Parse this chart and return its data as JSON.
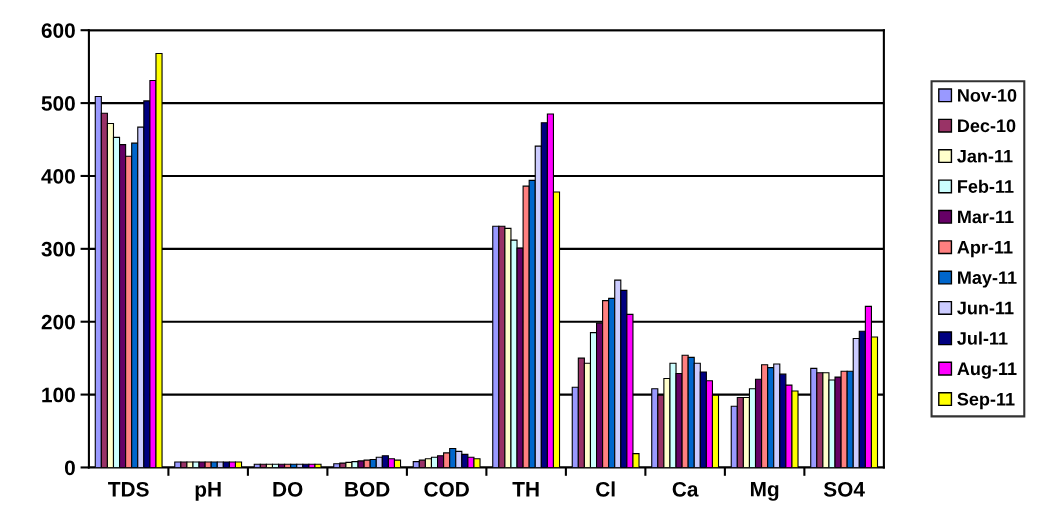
{
  "chart_data": {
    "type": "bar",
    "categories": [
      "TDS",
      "pH",
      "DO",
      "BOD",
      "COD",
      "TH",
      "Cl",
      "Ca",
      "Mg",
      "SO4"
    ],
    "ylim": [
      0,
      600
    ],
    "yticks": [
      0,
      100,
      200,
      300,
      400,
      500,
      600
    ],
    "grid": "y",
    "legend": "right",
    "series": [
      {
        "name": "Nov-10",
        "color": "#9999ff",
        "values": [
          509,
          7.5,
          4.5,
          5,
          8,
          331,
          110,
          108,
          84,
          136
        ]
      },
      {
        "name": "Dec-10",
        "color": "#993366",
        "values": [
          486,
          7.5,
          4.5,
          6,
          10,
          331,
          150,
          99,
          96,
          130
        ]
      },
      {
        "name": "Jan-11",
        "color": "#ffffcc",
        "values": [
          472,
          7.5,
          4.5,
          7,
          12,
          328,
          143,
          122,
          96,
          130
        ]
      },
      {
        "name": "Feb-11",
        "color": "#ccffff",
        "values": [
          453,
          7.5,
          4.5,
          8,
          14,
          312,
          185,
          143,
          108,
          120
        ]
      },
      {
        "name": "Mar-11",
        "color": "#660066",
        "values": [
          443,
          7.5,
          4.5,
          9,
          16,
          301,
          198,
          129,
          121,
          124
        ]
      },
      {
        "name": "Apr-11",
        "color": "#ff8080",
        "values": [
          427,
          7.5,
          4.5,
          10,
          20,
          386,
          229,
          154,
          141,
          132
        ]
      },
      {
        "name": "May-11",
        "color": "#0066cc",
        "values": [
          445,
          7.5,
          4.5,
          11,
          26,
          394,
          232,
          151,
          137,
          132
        ]
      },
      {
        "name": "Jun-11",
        "color": "#ccccff",
        "values": [
          467,
          7.5,
          4.5,
          14,
          22,
          441,
          257,
          143,
          142,
          177
        ]
      },
      {
        "name": "Jul-11",
        "color": "#000080",
        "values": [
          503,
          7.5,
          4.5,
          16,
          18,
          473,
          243,
          131,
          128,
          187
        ]
      },
      {
        "name": "Aug-11",
        "color": "#ff00ff",
        "values": [
          531,
          7.5,
          4.5,
          12,
          14,
          485,
          210,
          119,
          113,
          221
        ]
      },
      {
        "name": "Sep-11",
        "color": "#ffff00",
        "values": [
          568,
          7.5,
          4.5,
          10,
          12,
          378,
          19,
          99,
          105,
          179
        ]
      }
    ]
  }
}
